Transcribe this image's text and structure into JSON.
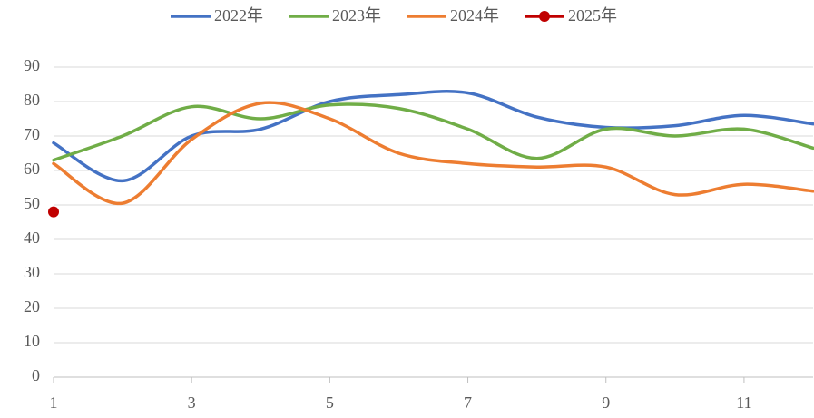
{
  "chart_data": {
    "type": "line",
    "x": [
      1,
      2,
      3,
      4,
      5,
      6,
      7,
      8,
      9,
      10,
      11,
      12
    ],
    "series": [
      {
        "name": "2022年",
        "color": "#4472c4",
        "values": [
          68,
          57,
          70,
          72,
          80,
          82,
          82.5,
          75.5,
          72.5,
          73,
          76,
          73.5
        ]
      },
      {
        "name": "2023年",
        "color": "#70ad47",
        "values": [
          63,
          70,
          78.5,
          75,
          79,
          78,
          72,
          63.5,
          72,
          70,
          72,
          66.5
        ]
      },
      {
        "name": "2024年",
        "color": "#ed7d31",
        "values": [
          62,
          50.5,
          69,
          79.5,
          75,
          65,
          62,
          61,
          61,
          53,
          56,
          54
        ]
      },
      {
        "name": "2025年",
        "color": "#c00000",
        "values": [
          48,
          null,
          null,
          null,
          null,
          null,
          null,
          null,
          null,
          null,
          null,
          null
        ]
      }
    ],
    "xlim": [
      1,
      12
    ],
    "xticks": [
      1,
      3,
      5,
      7,
      9,
      11
    ],
    "ylim": [
      0,
      90
    ],
    "yticks": [
      0,
      10,
      20,
      30,
      40,
      50,
      60,
      70,
      80,
      90
    ],
    "grid": true,
    "smooth": true,
    "legend": "top"
  }
}
